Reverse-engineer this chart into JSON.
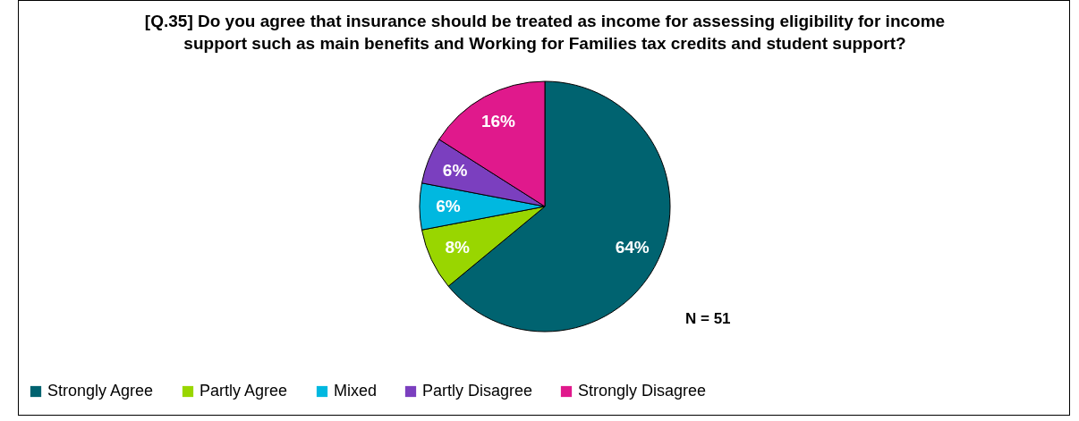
{
  "chart_data": {
    "type": "pie",
    "title": "[Q.35] Do you agree that insurance should be treated as income for assessing eligibility for income support such as main benefits and Working for Families tax credits and student support?",
    "categories": [
      "Strongly Agree",
      "Partly Agree",
      "Mixed",
      "Partly Disagree",
      "Strongly Disagree"
    ],
    "values": [
      64,
      8,
      6,
      6,
      16
    ],
    "colors": [
      "#006370",
      "#99d600",
      "#00b8e0",
      "#7b3fbf",
      "#e0198c"
    ],
    "value_labels": [
      "64%",
      "8%",
      "6%",
      "6%",
      "16%"
    ],
    "annotations": [
      "N = 51"
    ],
    "legend": "bottom"
  }
}
